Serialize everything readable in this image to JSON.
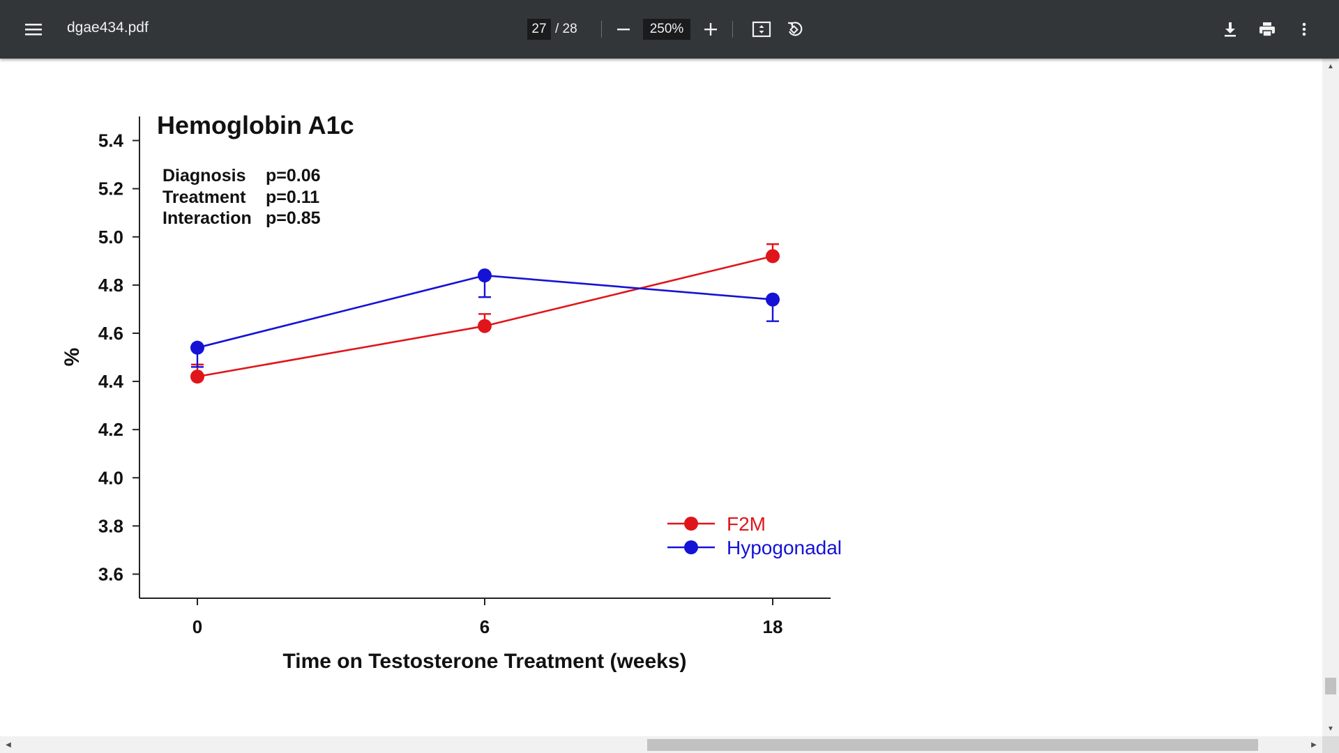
{
  "toolbar": {
    "document_title": "dgae434.pdf",
    "current_page": "27",
    "total_pages": "/ 28",
    "zoom_value": "250%",
    "icons": [
      "menu-icon",
      "zoom-out-icon",
      "zoom-in-icon",
      "fit-page-icon",
      "rotate-icon",
      "download-icon",
      "print-icon",
      "more-options-icon"
    ]
  },
  "chart_data": {
    "type": "line",
    "title": "Hemoglobin A1c",
    "xlabel": "Time on Testosterone Treatment (weeks)",
    "ylabel": "%",
    "categories": [
      "0",
      "6",
      "18"
    ],
    "ylim": [
      3.5,
      5.5
    ],
    "yticks": [
      "5.4",
      "5.2",
      "5.0",
      "4.8",
      "4.6",
      "4.4",
      "4.2",
      "4.0",
      "3.8",
      "3.6"
    ],
    "stats": [
      {
        "label": "Diagnosis",
        "value": "p=0.06"
      },
      {
        "label": "Treatment",
        "value": "p=0.11"
      },
      {
        "label": "Interaction",
        "value": "p=0.85"
      }
    ],
    "series": [
      {
        "name": "F2M",
        "color": "#e0151b",
        "values": [
          4.42,
          4.63,
          4.92
        ],
        "errors": [
          0.05,
          0.05,
          0.05
        ],
        "error_dir": "up"
      },
      {
        "name": "Hypogonadal",
        "color": "#1512d6",
        "values": [
          4.54,
          4.84,
          4.74
        ],
        "errors": [
          0.08,
          0.09,
          0.09
        ],
        "error_dir": "down"
      }
    ],
    "legend_position": "lower-right",
    "grid": false
  }
}
